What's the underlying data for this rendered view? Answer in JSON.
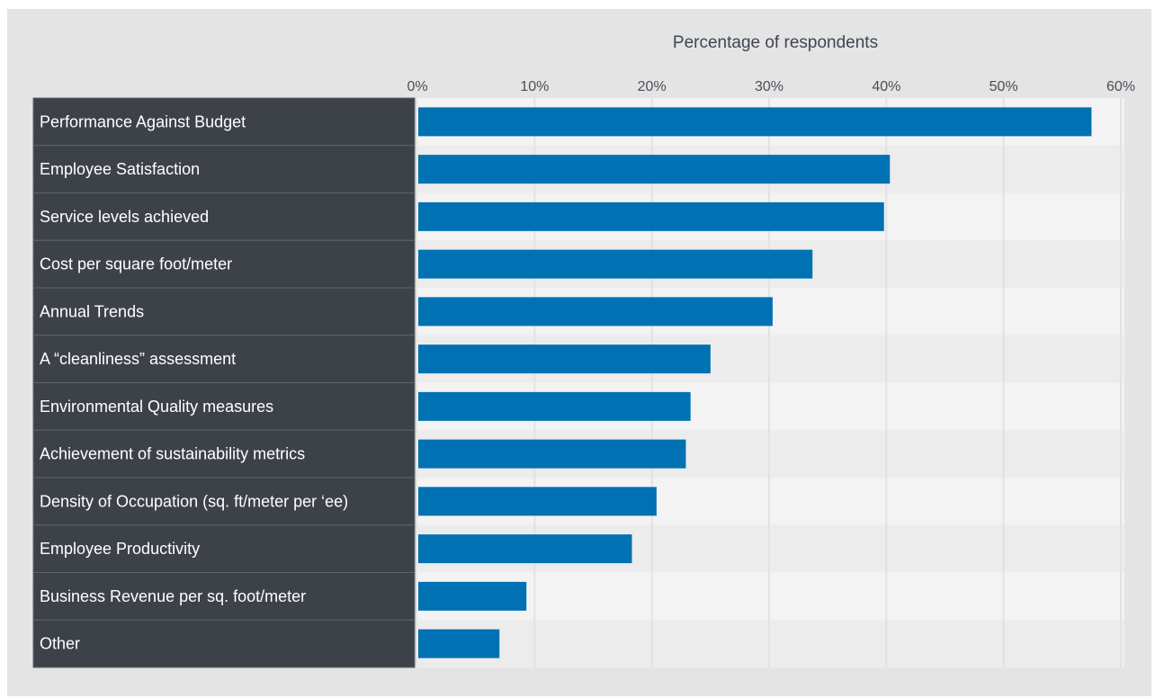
{
  "chart_data": {
    "type": "bar",
    "orientation": "horizontal",
    "xlabel": "Percentage of respondents",
    "xlim": [
      0,
      60
    ],
    "xticks": [
      "0%",
      "10%",
      "20%",
      "30%",
      "40%",
      "50%",
      "60%"
    ],
    "grid": true,
    "categories": [
      "Performance Against Budget",
      "Employee Satisfaction",
      "Service levels achieved",
      "Cost per square foot/meter",
      "Annual Trends",
      "A “cleanliness” assessment",
      "Environmental Quality measures",
      "Achievement of sustainability metrics",
      "Density of Occupation (sq. ft/meter per ‘ee)",
      "Employee Productivity",
      "Business Revenue per sq. foot/meter",
      "Other"
    ],
    "values": [
      57.5,
      40.3,
      39.8,
      33.7,
      30.3,
      25.0,
      23.3,
      22.9,
      20.4,
      18.3,
      9.3,
      7.0
    ],
    "colors": {
      "bar": "#0071b2",
      "label_bg": "#3d4249",
      "panel_bg": "#e4e4e4",
      "row_odd": "#f3f3f3",
      "row_even": "#ececec",
      "gridline": "#e2e2e2"
    }
  }
}
